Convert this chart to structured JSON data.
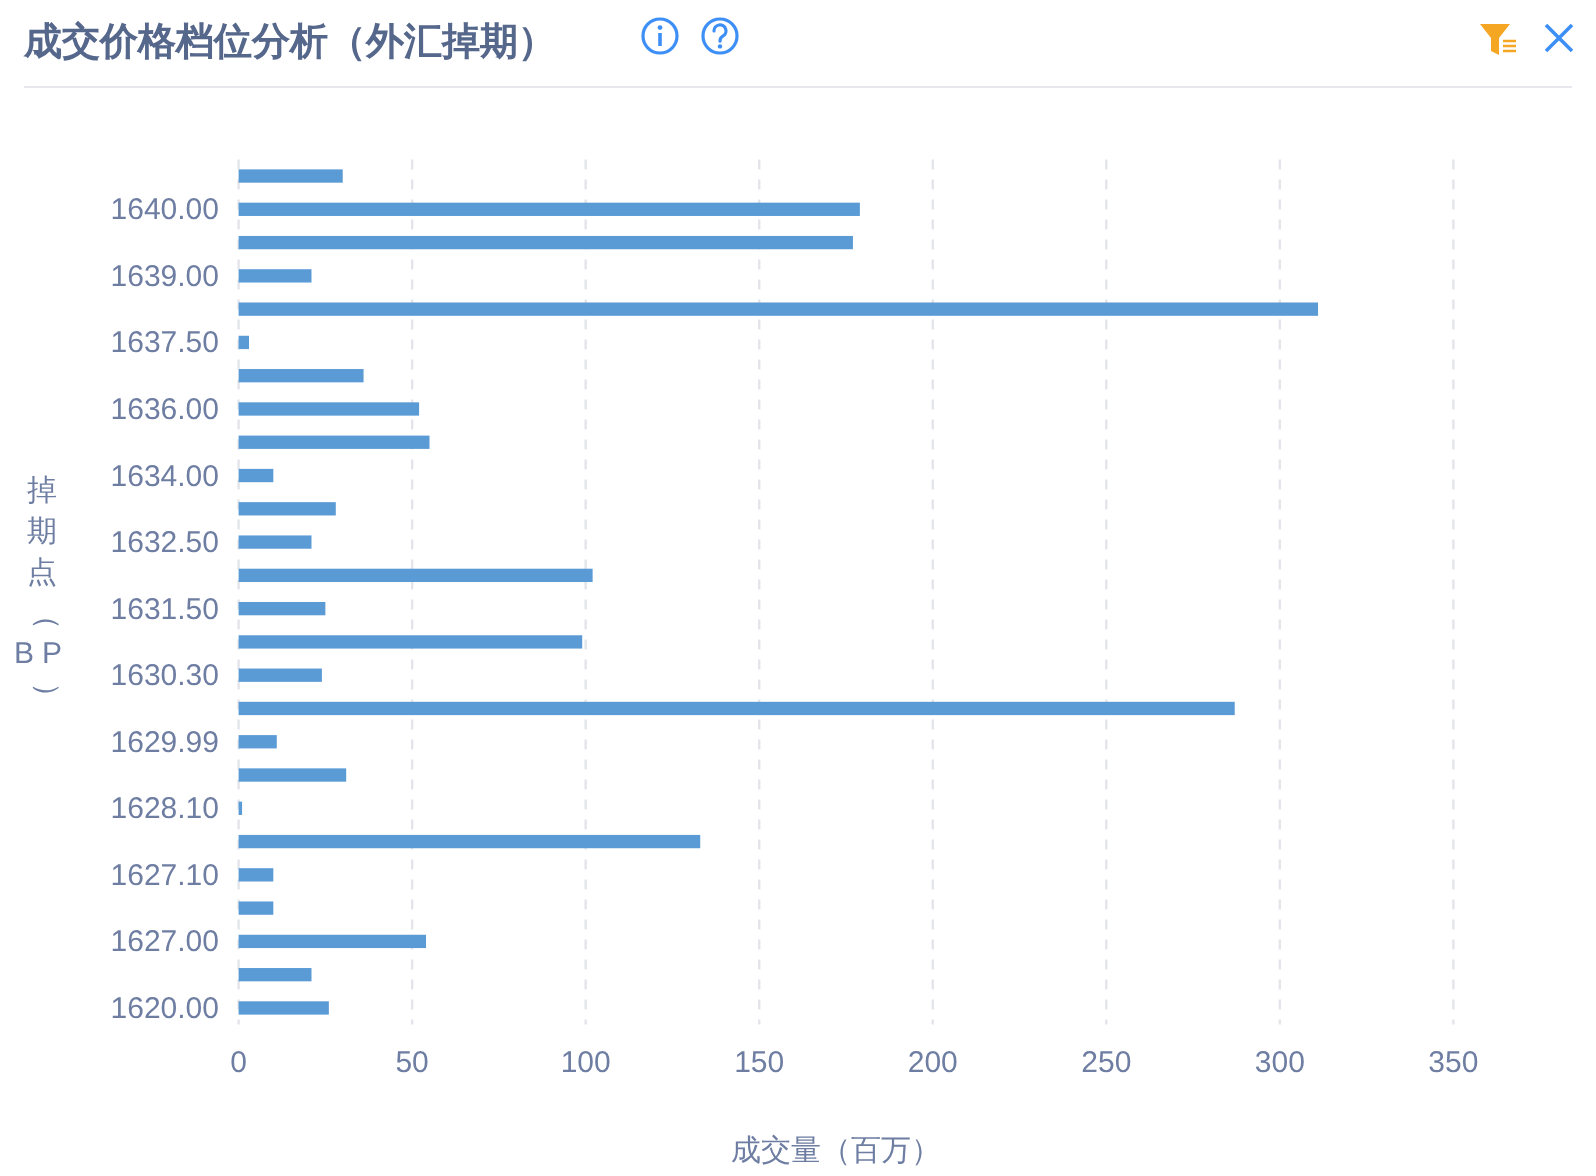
{
  "chart_data": {
    "type": "bar",
    "orientation": "horizontal",
    "title": "成交价格档位分析（外汇掉期）",
    "xlabel": "成交量（百万）",
    "ylabel": "掉期点（BP）",
    "categories": [
      null,
      "1640.00",
      null,
      "1639.00",
      null,
      "1637.50",
      null,
      "1636.00",
      null,
      "1634.00",
      null,
      "1632.50",
      null,
      "1631.50",
      null,
      "1630.30",
      null,
      "1629.99",
      null,
      "1628.10",
      null,
      "1627.10",
      null,
      "1627.00",
      null,
      "1620.00"
    ],
    "values": [
      30,
      179,
      177,
      21,
      311,
      3,
      36,
      52,
      55,
      10,
      28,
      21,
      102,
      25,
      99,
      24,
      287,
      11,
      31,
      1,
      133,
      10,
      10,
      54,
      21,
      26
    ],
    "color": "#5b9bd5",
    "xlim": [
      0,
      350
    ],
    "xticks": [
      0,
      50,
      100,
      150,
      200,
      250,
      300,
      350
    ],
    "grid": "x",
    "legend": false
  }
}
